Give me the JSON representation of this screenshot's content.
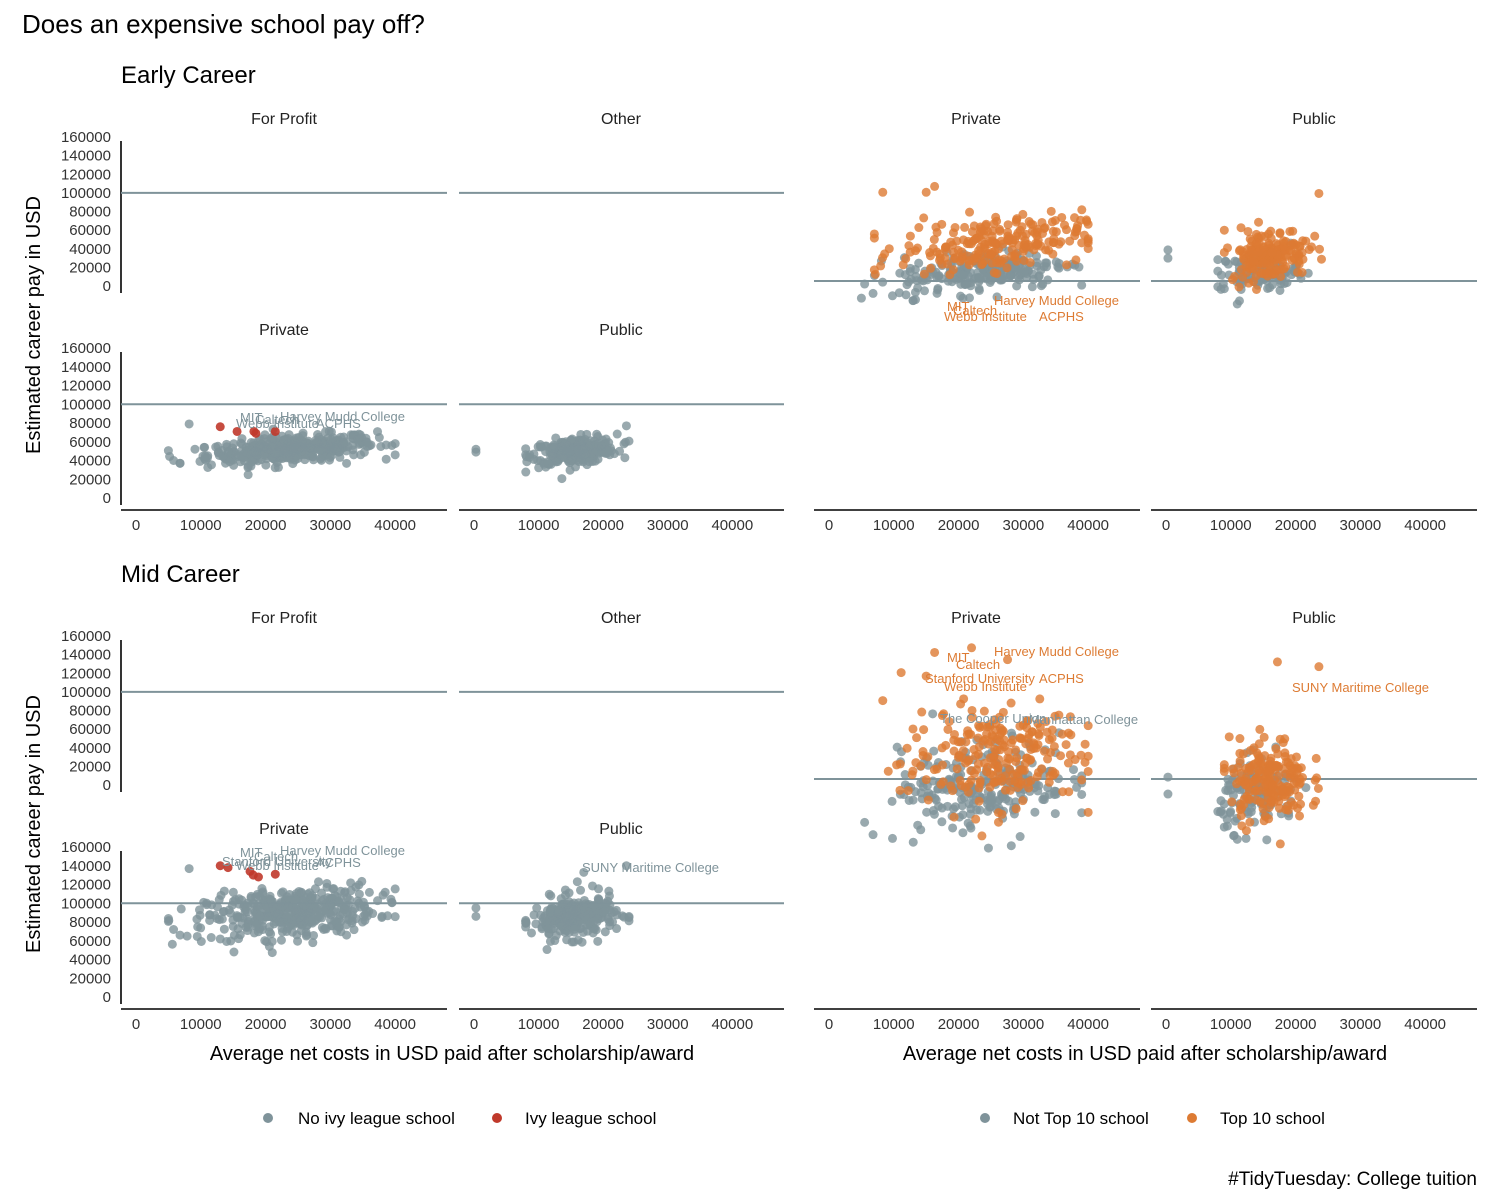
{
  "title": "Does an expensive school pay off?",
  "caption": "#TidyTuesday: College tuition",
  "rows": {
    "early": "Early Career",
    "mid": "Mid Career"
  },
  "ylabel": "Estimated career pay in USD",
  "xlabel": "Average net costs in USD paid after scholarship/award",
  "yticks": [
    "0",
    "20000",
    "40000",
    "60000",
    "80000",
    "100000",
    "120000",
    "140000",
    "160000"
  ],
  "xticks": [
    "0",
    "10000",
    "20000",
    "30000",
    "40000"
  ],
  "colors": {
    "grey": "#7f939a",
    "ivy": "#c0392b",
    "top10": "#dd7b33",
    "refline": "#7f939a",
    "axis": "#000000",
    "text": "#333333"
  },
  "legend_left": {
    "no": "No ivy league school",
    "yes": "Ivy league school"
  },
  "legend_right": {
    "no": "Not Top 10 school",
    "yes": "Top 10 school"
  },
  "panel_titles": {
    "ivy_top": [
      "For Profit",
      "Other"
    ],
    "ivy_bottom": [
      "Private",
      "Public"
    ],
    "top_right": [
      "Private",
      "Public"
    ]
  },
  "chart_data": [
    {
      "type": "scatter",
      "name": "Early Career - ivy league facets",
      "panels": [
        "For Profit",
        "Other",
        "Private",
        "Public"
      ],
      "reference_line": 100000,
      "xlim": [
        0,
        48000
      ],
      "ylim": [
        0,
        170000
      ],
      "labels_private": [
        "MIT",
        "Caltech",
        "Harvey Mudd College",
        "Webb Institute",
        "ACPHS"
      ]
    },
    {
      "type": "scatter",
      "name": "Early Career - top 10 facets",
      "panels": [
        "Private",
        "Public"
      ],
      "labels_private": [
        "MIT",
        "Caltech",
        "Harvey Mudd College",
        "Webb Institute",
        "ACPHS"
      ]
    },
    {
      "type": "scatter",
      "name": "Mid Career - ivy league facets",
      "panels": [
        "For Profit",
        "Other",
        "Private",
        "Public"
      ],
      "reference_line": 100000,
      "labels_private": [
        "MIT",
        "Caltech",
        "Harvey Mudd College",
        "Stanford University",
        "Webb Institute",
        "ACPHS"
      ],
      "labels_public": [
        "SUNY Maritime College"
      ]
    },
    {
      "type": "scatter",
      "name": "Mid Career - top 10 facets",
      "panels": [
        "Private",
        "Public"
      ],
      "labels_private": [
        "MIT",
        "Caltech",
        "Harvey Mudd College",
        "Stanford University",
        "Webb Institute",
        "ACPHS",
        "The Cooper Union",
        "Manhattan College"
      ],
      "labels_public": [
        "SUNY Maritime College"
      ]
    }
  ]
}
